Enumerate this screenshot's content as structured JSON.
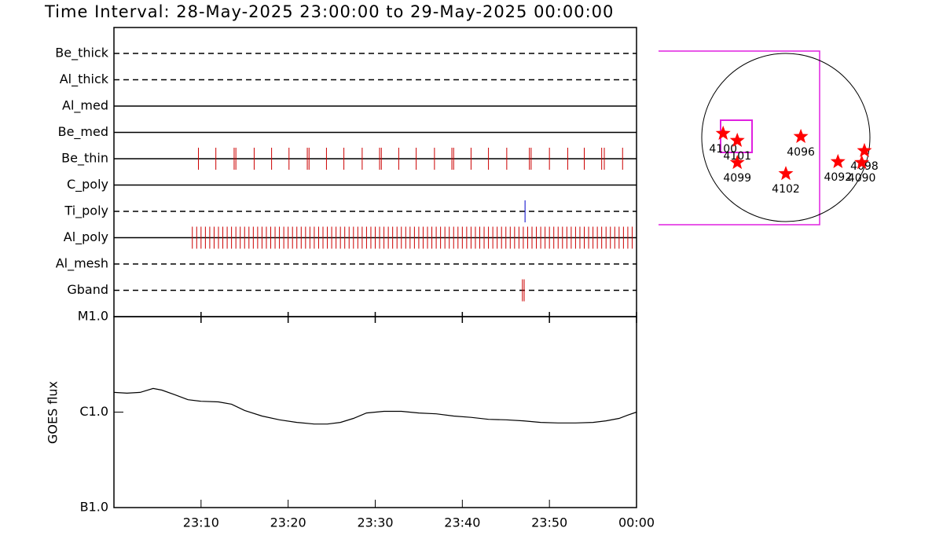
{
  "title": "Time Interval: 28-May-2025 23:00:00 to 29-May-2025 00:00:00",
  "chart_data": [
    {
      "type": "event",
      "xlim": [
        0,
        60
      ],
      "rows": [
        {
          "name": "Be_thick",
          "style": "dashed",
          "color": "#000000",
          "times": []
        },
        {
          "name": "Al_thick",
          "style": "dashed",
          "color": "#000000",
          "times": []
        },
        {
          "name": "Al_med",
          "style": "solid",
          "color": "#000000",
          "times": []
        },
        {
          "name": "Be_med",
          "style": "solid",
          "color": "#000000",
          "times": []
        },
        {
          "name": "Be_thin",
          "style": "solid",
          "color": "#cc0000",
          "times": [
            9.7,
            11.7,
            13.8,
            14.0,
            16.1,
            18.1,
            20.1,
            22.2,
            22.4,
            24.4,
            26.4,
            28.5,
            30.5,
            30.7,
            32.7,
            34.7,
            36.8,
            38.8,
            39.0,
            41.0,
            43.0,
            45.1,
            47.7,
            47.9,
            50.0,
            52.1,
            54.0,
            56.0,
            56.3,
            58.4
          ]
        },
        {
          "name": "C_poly",
          "style": "solid",
          "color": "#000000",
          "times": []
        },
        {
          "name": "Ti_poly",
          "style": "dashed",
          "color": "#0000cc",
          "times": [
            47.2
          ]
        },
        {
          "name": "Al_poly",
          "style": "solid",
          "color": "#cc0000",
          "times": [
            9.0,
            9.5,
            10.0,
            10.5,
            11.0,
            11.5,
            12.0,
            12.5,
            13.0,
            13.5,
            14.0,
            14.5,
            15.0,
            15.5,
            16.0,
            16.5,
            17.0,
            17.5,
            18.0,
            18.5,
            19.0,
            19.5,
            20.0,
            20.5,
            21.0,
            21.5,
            22.0,
            22.5,
            23.0,
            23.5,
            24.0,
            24.5,
            25.0,
            25.5,
            26.0,
            26.5,
            27.0,
            27.5,
            28.0,
            28.5,
            29.0,
            29.5,
            30.0,
            30.5,
            31.0,
            31.5,
            32.0,
            32.5,
            33.0,
            33.5,
            34.0,
            34.5,
            35.0,
            35.5,
            36.0,
            36.5,
            37.0,
            37.5,
            38.0,
            38.5,
            39.0,
            39.5,
            40.0,
            40.5,
            41.0,
            41.5,
            42.0,
            42.5,
            43.0,
            43.5,
            44.0,
            44.5,
            45.0,
            45.5,
            46.0,
            46.5,
            47.0,
            47.5,
            48.0,
            48.5,
            49.0,
            49.5,
            50.0,
            50.5,
            51.0,
            51.5,
            52.0,
            52.5,
            53.0,
            53.5,
            54.0,
            54.5,
            55.0,
            55.5,
            56.0,
            56.5,
            57.0,
            57.5,
            58.0,
            58.5,
            59.0,
            59.5
          ]
        },
        {
          "name": "Al_mesh",
          "style": "dashed",
          "color": "#000000",
          "times": []
        },
        {
          "name": "Gband",
          "style": "dashed",
          "color": "#cc0000",
          "times": [
            46.9,
            47.1
          ]
        }
      ]
    },
    {
      "type": "line",
      "ylabel": "GOES flux",
      "log": true,
      "color": "#000000",
      "xlim": [
        0,
        60
      ],
      "xticks": [
        {
          "value": 10,
          "label": "23:10"
        },
        {
          "value": 20,
          "label": "23:20"
        },
        {
          "value": 30,
          "label": "23:30"
        },
        {
          "value": 40,
          "label": "23:40"
        },
        {
          "value": 50,
          "label": "23:50"
        },
        {
          "value": 60,
          "label": "00:00"
        }
      ],
      "ylim": [
        1e-07,
        1e-05
      ],
      "yticks": [
        {
          "value": 1e-07,
          "label": "B1.0"
        },
        {
          "value": 1e-06,
          "label": "C1.0"
        },
        {
          "value": 1e-05,
          "label": "M1.0"
        }
      ],
      "x": [
        0,
        1.5,
        3,
        4.5,
        5.5,
        7,
        8.5,
        10,
        12,
        13.5,
        15,
        17,
        19,
        21,
        23,
        24.5,
        26,
        27.5,
        29,
        31,
        33,
        35,
        37,
        39,
        41,
        43,
        45,
        47,
        49,
        51,
        53,
        55,
        56.5,
        58,
        59,
        60
      ],
      "y": [
        1.61e-06,
        1.58e-06,
        1.61e-06,
        1.77e-06,
        1.7e-06,
        1.52e-06,
        1.35e-06,
        1.3e-06,
        1.28e-06,
        1.21e-06,
        1.04e-06,
        9.1e-07,
        8.3e-07,
        7.8e-07,
        7.5e-07,
        7.5e-07,
        7.8e-07,
        8.6e-07,
        9.8e-07,
        1.02e-06,
        1.02e-06,
        9.8e-07,
        9.6e-07,
        9.1e-07,
        8.8e-07,
        8.4e-07,
        8.3e-07,
        8.1e-07,
        7.8e-07,
        7.7e-07,
        7.7e-07,
        7.8e-07,
        8.1e-07,
        8.6e-07,
        9.3e-07,
        1e-06
      ]
    },
    {
      "type": "scatter",
      "marker": "star",
      "color": "#ff0000",
      "labels": [
        "4100",
        "4101",
        "4099",
        "4096",
        "4102",
        "4092",
        "4098",
        "4090"
      ],
      "x": [
        -710,
        -550,
        -550,
        170,
        0,
        590,
        890,
        860
      ],
      "y": [
        45,
        -35,
        -285,
        10,
        -410,
        -275,
        -150,
        -285
      ]
    }
  ]
}
